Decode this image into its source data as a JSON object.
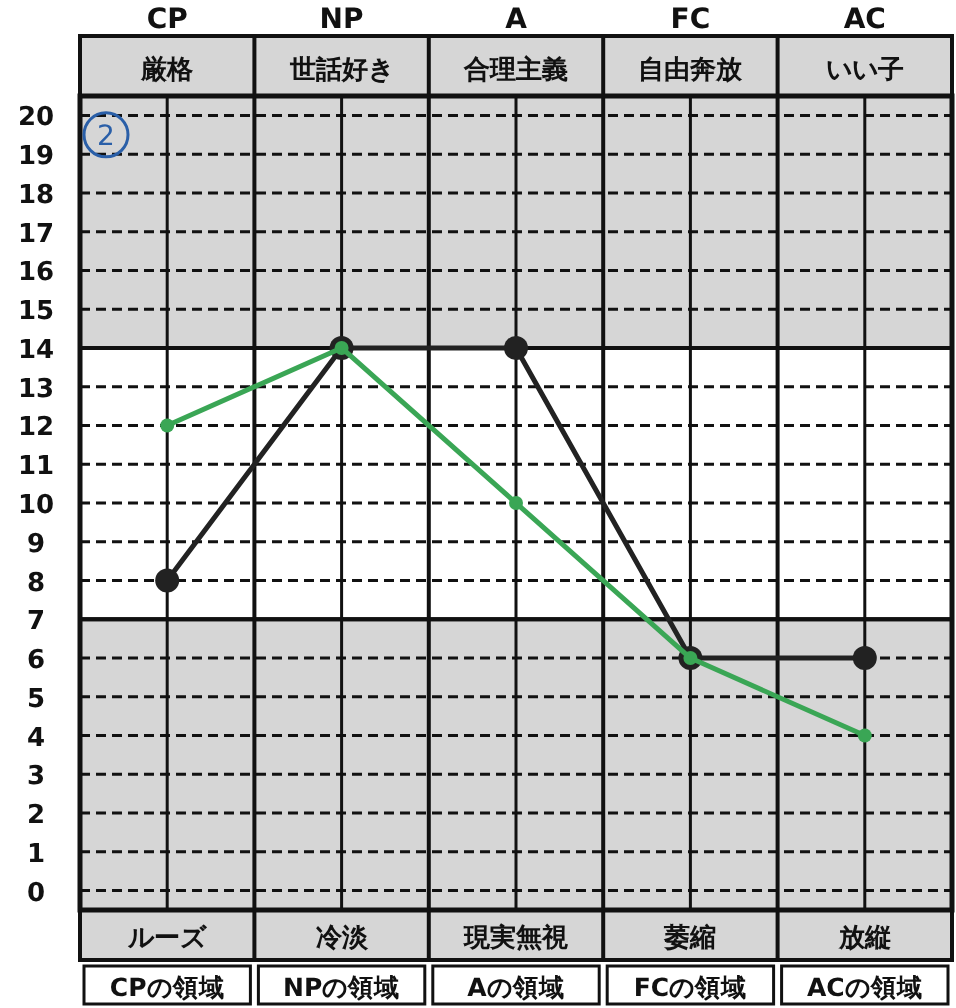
{
  "chart_data": {
    "type": "line",
    "categories": [
      "CP",
      "NP",
      "A",
      "FC",
      "AC"
    ],
    "series": [
      {
        "color": "#222222",
        "values": [
          8,
          14,
          14,
          6,
          6
        ]
      },
      {
        "color": "#3aa655",
        "values": [
          12,
          14,
          10,
          6,
          4
        ]
      }
    ],
    "ylim": [
      -0.5,
      20.5
    ],
    "yticks": [
      0,
      1,
      2,
      3,
      4,
      5,
      6,
      7,
      8,
      9,
      10,
      11,
      12,
      13,
      14,
      15,
      16,
      17,
      18,
      19,
      20
    ],
    "grid": true,
    "marker": "circle",
    "line_style": "solid",
    "bands": [
      {
        "axis": "y",
        "from": -0.5,
        "to": 7,
        "color": "#d6d6d6"
      },
      {
        "axis": "y",
        "from": 14,
        "to": 20.5,
        "color": "#d6d6d6"
      }
    ],
    "annotations": [
      "厳格",
      "世話好き",
      "合理主義",
      "自由奔放",
      "いい子",
      "ルーズ",
      "冷淡",
      "現実無視",
      "萎縮",
      "放縦",
      "CPの領域",
      "NPの領域",
      "Aの領域",
      "FCの領域",
      "ACの領域",
      "2"
    ]
  }
}
